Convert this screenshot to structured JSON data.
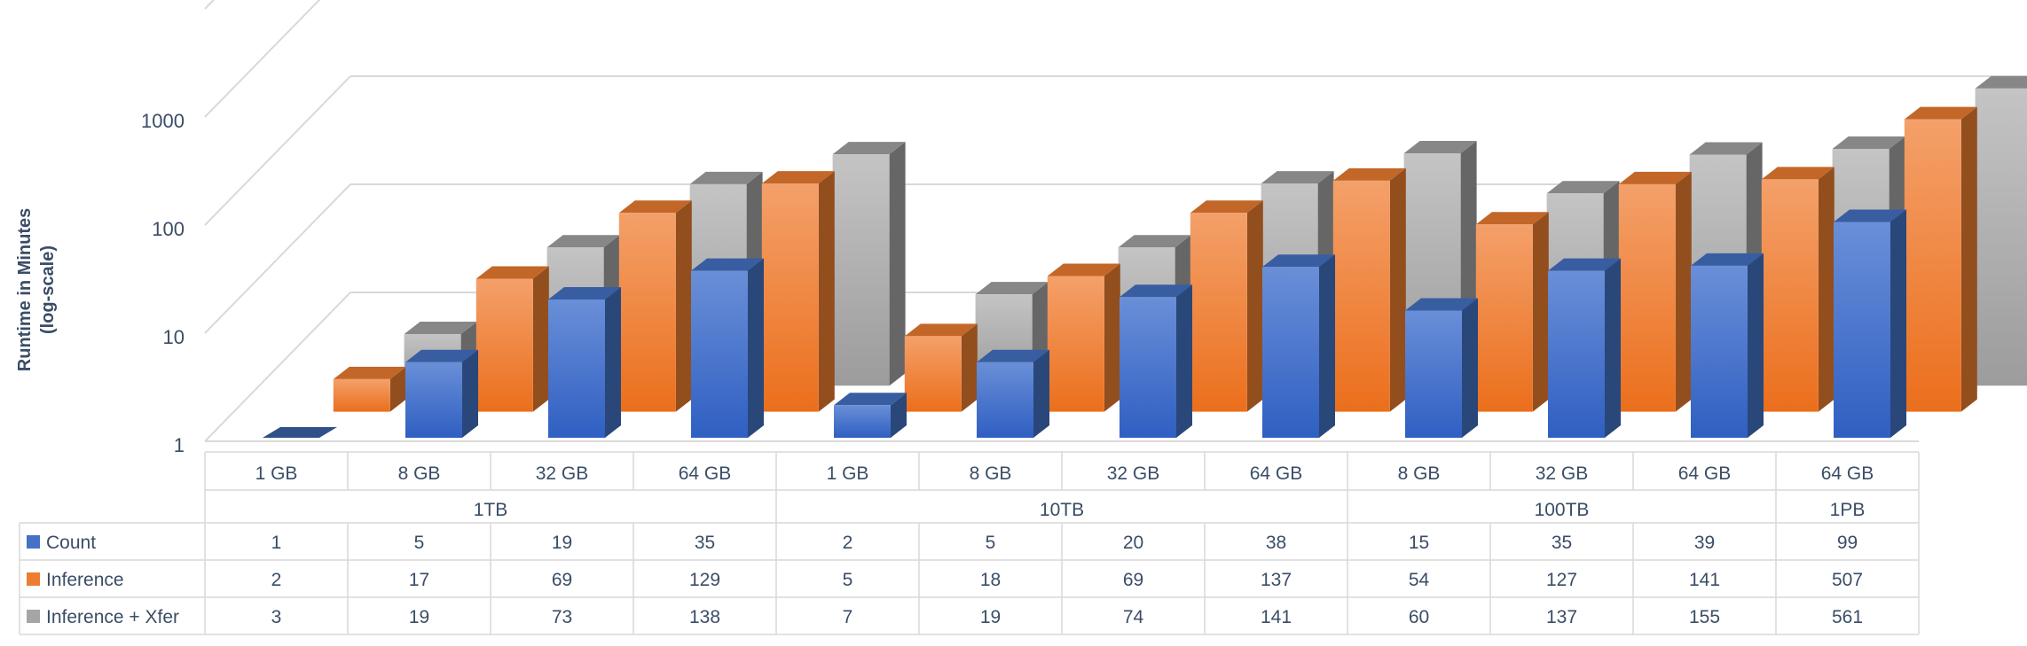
{
  "chart_data": {
    "type": "bar",
    "subtype": "3d-column-with-data-table",
    "ylabel_lines": [
      "Runtime in Minutes",
      "(log-scale)"
    ],
    "y_scale": "log",
    "ylim": [
      1,
      10000
    ],
    "y_ticks": [
      "1",
      "10",
      "100",
      "1000"
    ],
    "grid": true,
    "groups": [
      {
        "label": "1TB",
        "categories": [
          "1 GB",
          "8 GB",
          "32 GB",
          "64 GB"
        ]
      },
      {
        "label": "10TB",
        "categories": [
          "1 GB",
          "8 GB",
          "32 GB",
          "64 GB"
        ]
      },
      {
        "label": "100TB",
        "categories": [
          "8 GB",
          "32 GB",
          "64 GB"
        ]
      },
      {
        "label": "1PB",
        "categories": [
          "64 GB"
        ]
      }
    ],
    "series": [
      {
        "name": "Count",
        "color": "#4472c4",
        "values": [
          1,
          5,
          19,
          35,
          2,
          5,
          20,
          38,
          15,
          35,
          39,
          99
        ]
      },
      {
        "name": "Inference",
        "color": "#ed7d31",
        "values": [
          2,
          17,
          69,
          129,
          5,
          18,
          69,
          137,
          54,
          127,
          141,
          507
        ]
      },
      {
        "name": "Inference + Xfer",
        "color": "#a5a5a5",
        "values": [
          3,
          19,
          73,
          138,
          7,
          19,
          74,
          141,
          60,
          137,
          155,
          561
        ]
      }
    ],
    "legend_placement": "data-table"
  }
}
